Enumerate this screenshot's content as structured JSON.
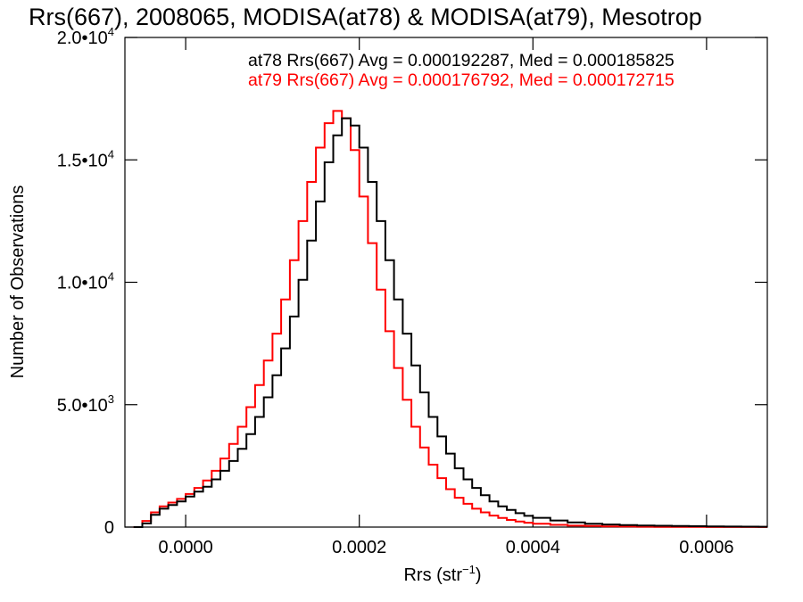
{
  "chart_data": {
    "type": "line",
    "title": "Rrs(667), 2008065, MODISA(at78) & MODISA(at79), Mesotrop",
    "xlabel": "Rrs (str",
    "xlabel_sup": "−1",
    "xlabel_close": ")",
    "ylabel": "Number of Observations",
    "xlim": [
      -7e-05,
      0.00067
    ],
    "ylim": [
      0,
      20000
    ],
    "x_ticks": [
      {
        "value": 0.0,
        "label": "0.0000"
      },
      {
        "value": 0.0002,
        "label": "0.0002"
      },
      {
        "value": 0.0004,
        "label": "0.0004"
      },
      {
        "value": 0.0006,
        "label": "0.0006"
      }
    ],
    "y_ticks": [
      {
        "value": 0,
        "mant": "0",
        "exp": ""
      },
      {
        "value": 5000,
        "mant": "5.0•10",
        "exp": "3"
      },
      {
        "value": 10000,
        "mant": "1.0•10",
        "exp": "4"
      },
      {
        "value": 15000,
        "mant": "1.5•10",
        "exp": "4"
      },
      {
        "value": 20000,
        "mant": "2.0•10",
        "exp": "4"
      }
    ],
    "series": [
      {
        "name": "at78",
        "color": "#000000",
        "legend": "at78 Rrs(667) Avg = 0.000192287, Med = 0.000185825",
        "points": [
          [
            -6e-05,
            0
          ],
          [
            -5e-05,
            150
          ],
          [
            -4e-05,
            500
          ],
          [
            -3e-05,
            750
          ],
          [
            -2e-05,
            900
          ],
          [
            -1e-05,
            1050
          ],
          [
            0.0,
            1250
          ],
          [
            1e-05,
            1450
          ],
          [
            2e-05,
            1650
          ],
          [
            3e-05,
            1950
          ],
          [
            4e-05,
            2300
          ],
          [
            5e-05,
            2700
          ],
          [
            6e-05,
            3200
          ],
          [
            7e-05,
            3800
          ],
          [
            8e-05,
            4500
          ],
          [
            9e-05,
            5300
          ],
          [
            0.0001,
            6200
          ],
          [
            0.00011,
            7300
          ],
          [
            0.00012,
            8600
          ],
          [
            0.00013,
            10100
          ],
          [
            0.00014,
            11700
          ],
          [
            0.00015,
            13300
          ],
          [
            0.00016,
            14900
          ],
          [
            0.00017,
            16000
          ],
          [
            0.00018,
            16700
          ],
          [
            0.00019,
            16400
          ],
          [
            0.0002,
            15500
          ],
          [
            0.00021,
            14100
          ],
          [
            0.00022,
            12500
          ],
          [
            0.00023,
            10900
          ],
          [
            0.00024,
            9300
          ],
          [
            0.00025,
            7900
          ],
          [
            0.00026,
            6600
          ],
          [
            0.00027,
            5500
          ],
          [
            0.00028,
            4500
          ],
          [
            0.00029,
            3700
          ],
          [
            0.0003,
            3000
          ],
          [
            0.00031,
            2400
          ],
          [
            0.00032,
            1950
          ],
          [
            0.00033,
            1600
          ],
          [
            0.00034,
            1300
          ],
          [
            0.00035,
            1050
          ],
          [
            0.00036,
            850
          ],
          [
            0.00037,
            700
          ],
          [
            0.00038,
            570
          ],
          [
            0.00039,
            460
          ],
          [
            0.0004,
            380
          ],
          [
            0.00042,
            270
          ],
          [
            0.00044,
            190
          ],
          [
            0.00046,
            140
          ],
          [
            0.00048,
            105
          ],
          [
            0.0005,
            80
          ],
          [
            0.00052,
            65
          ],
          [
            0.00054,
            55
          ],
          [
            0.00056,
            45
          ],
          [
            0.00058,
            35
          ],
          [
            0.0006,
            28
          ],
          [
            0.00062,
            22
          ],
          [
            0.00064,
            18
          ],
          [
            0.00066,
            14
          ]
        ]
      },
      {
        "name": "at79",
        "color": "#ff0000",
        "legend": "at79 Rrs(667) Avg = 0.000176792, Med = 0.000172715",
        "points": [
          [
            -6e-05,
            0
          ],
          [
            -5e-05,
            250
          ],
          [
            -4e-05,
            600
          ],
          [
            -3e-05,
            850
          ],
          [
            -2e-05,
            1000
          ],
          [
            -1e-05,
            1150
          ],
          [
            0.0,
            1350
          ],
          [
            1e-05,
            1600
          ],
          [
            2e-05,
            1900
          ],
          [
            3e-05,
            2300
          ],
          [
            4e-05,
            2800
          ],
          [
            5e-05,
            3400
          ],
          [
            6e-05,
            4100
          ],
          [
            7e-05,
            4900
          ],
          [
            8e-05,
            5800
          ],
          [
            9e-05,
            6800
          ],
          [
            0.0001,
            7900
          ],
          [
            0.00011,
            9300
          ],
          [
            0.00012,
            10900
          ],
          [
            0.00013,
            12500
          ],
          [
            0.00014,
            14100
          ],
          [
            0.00015,
            15500
          ],
          [
            0.00016,
            16500
          ],
          [
            0.00017,
            17000
          ],
          [
            0.00018,
            16700
          ],
          [
            0.00019,
            15400
          ],
          [
            0.0002,
            13500
          ],
          [
            0.00021,
            11600
          ],
          [
            0.00022,
            9700
          ],
          [
            0.00023,
            8000
          ],
          [
            0.00024,
            6500
          ],
          [
            0.00025,
            5200
          ],
          [
            0.00026,
            4100
          ],
          [
            0.00027,
            3250
          ],
          [
            0.00028,
            2550
          ],
          [
            0.00029,
            2000
          ],
          [
            0.0003,
            1550
          ],
          [
            0.00031,
            1200
          ],
          [
            0.00032,
            950
          ],
          [
            0.00033,
            750
          ],
          [
            0.00034,
            600
          ],
          [
            0.00035,
            470
          ],
          [
            0.00036,
            370
          ],
          [
            0.00037,
            290
          ],
          [
            0.00038,
            230
          ],
          [
            0.00039,
            180
          ],
          [
            0.0004,
            140
          ],
          [
            0.00042,
            90
          ],
          [
            0.00044,
            60
          ],
          [
            0.00046,
            42
          ],
          [
            0.00048,
            30
          ],
          [
            0.0005,
            22
          ],
          [
            0.00052,
            16
          ],
          [
            0.00054,
            12
          ],
          [
            0.00056,
            9
          ],
          [
            0.00058,
            7
          ],
          [
            0.0006,
            5
          ],
          [
            0.00062,
            4
          ],
          [
            0.00064,
            3
          ],
          [
            0.00066,
            2
          ]
        ]
      }
    ],
    "grid": false,
    "legend_position": "top-right"
  }
}
